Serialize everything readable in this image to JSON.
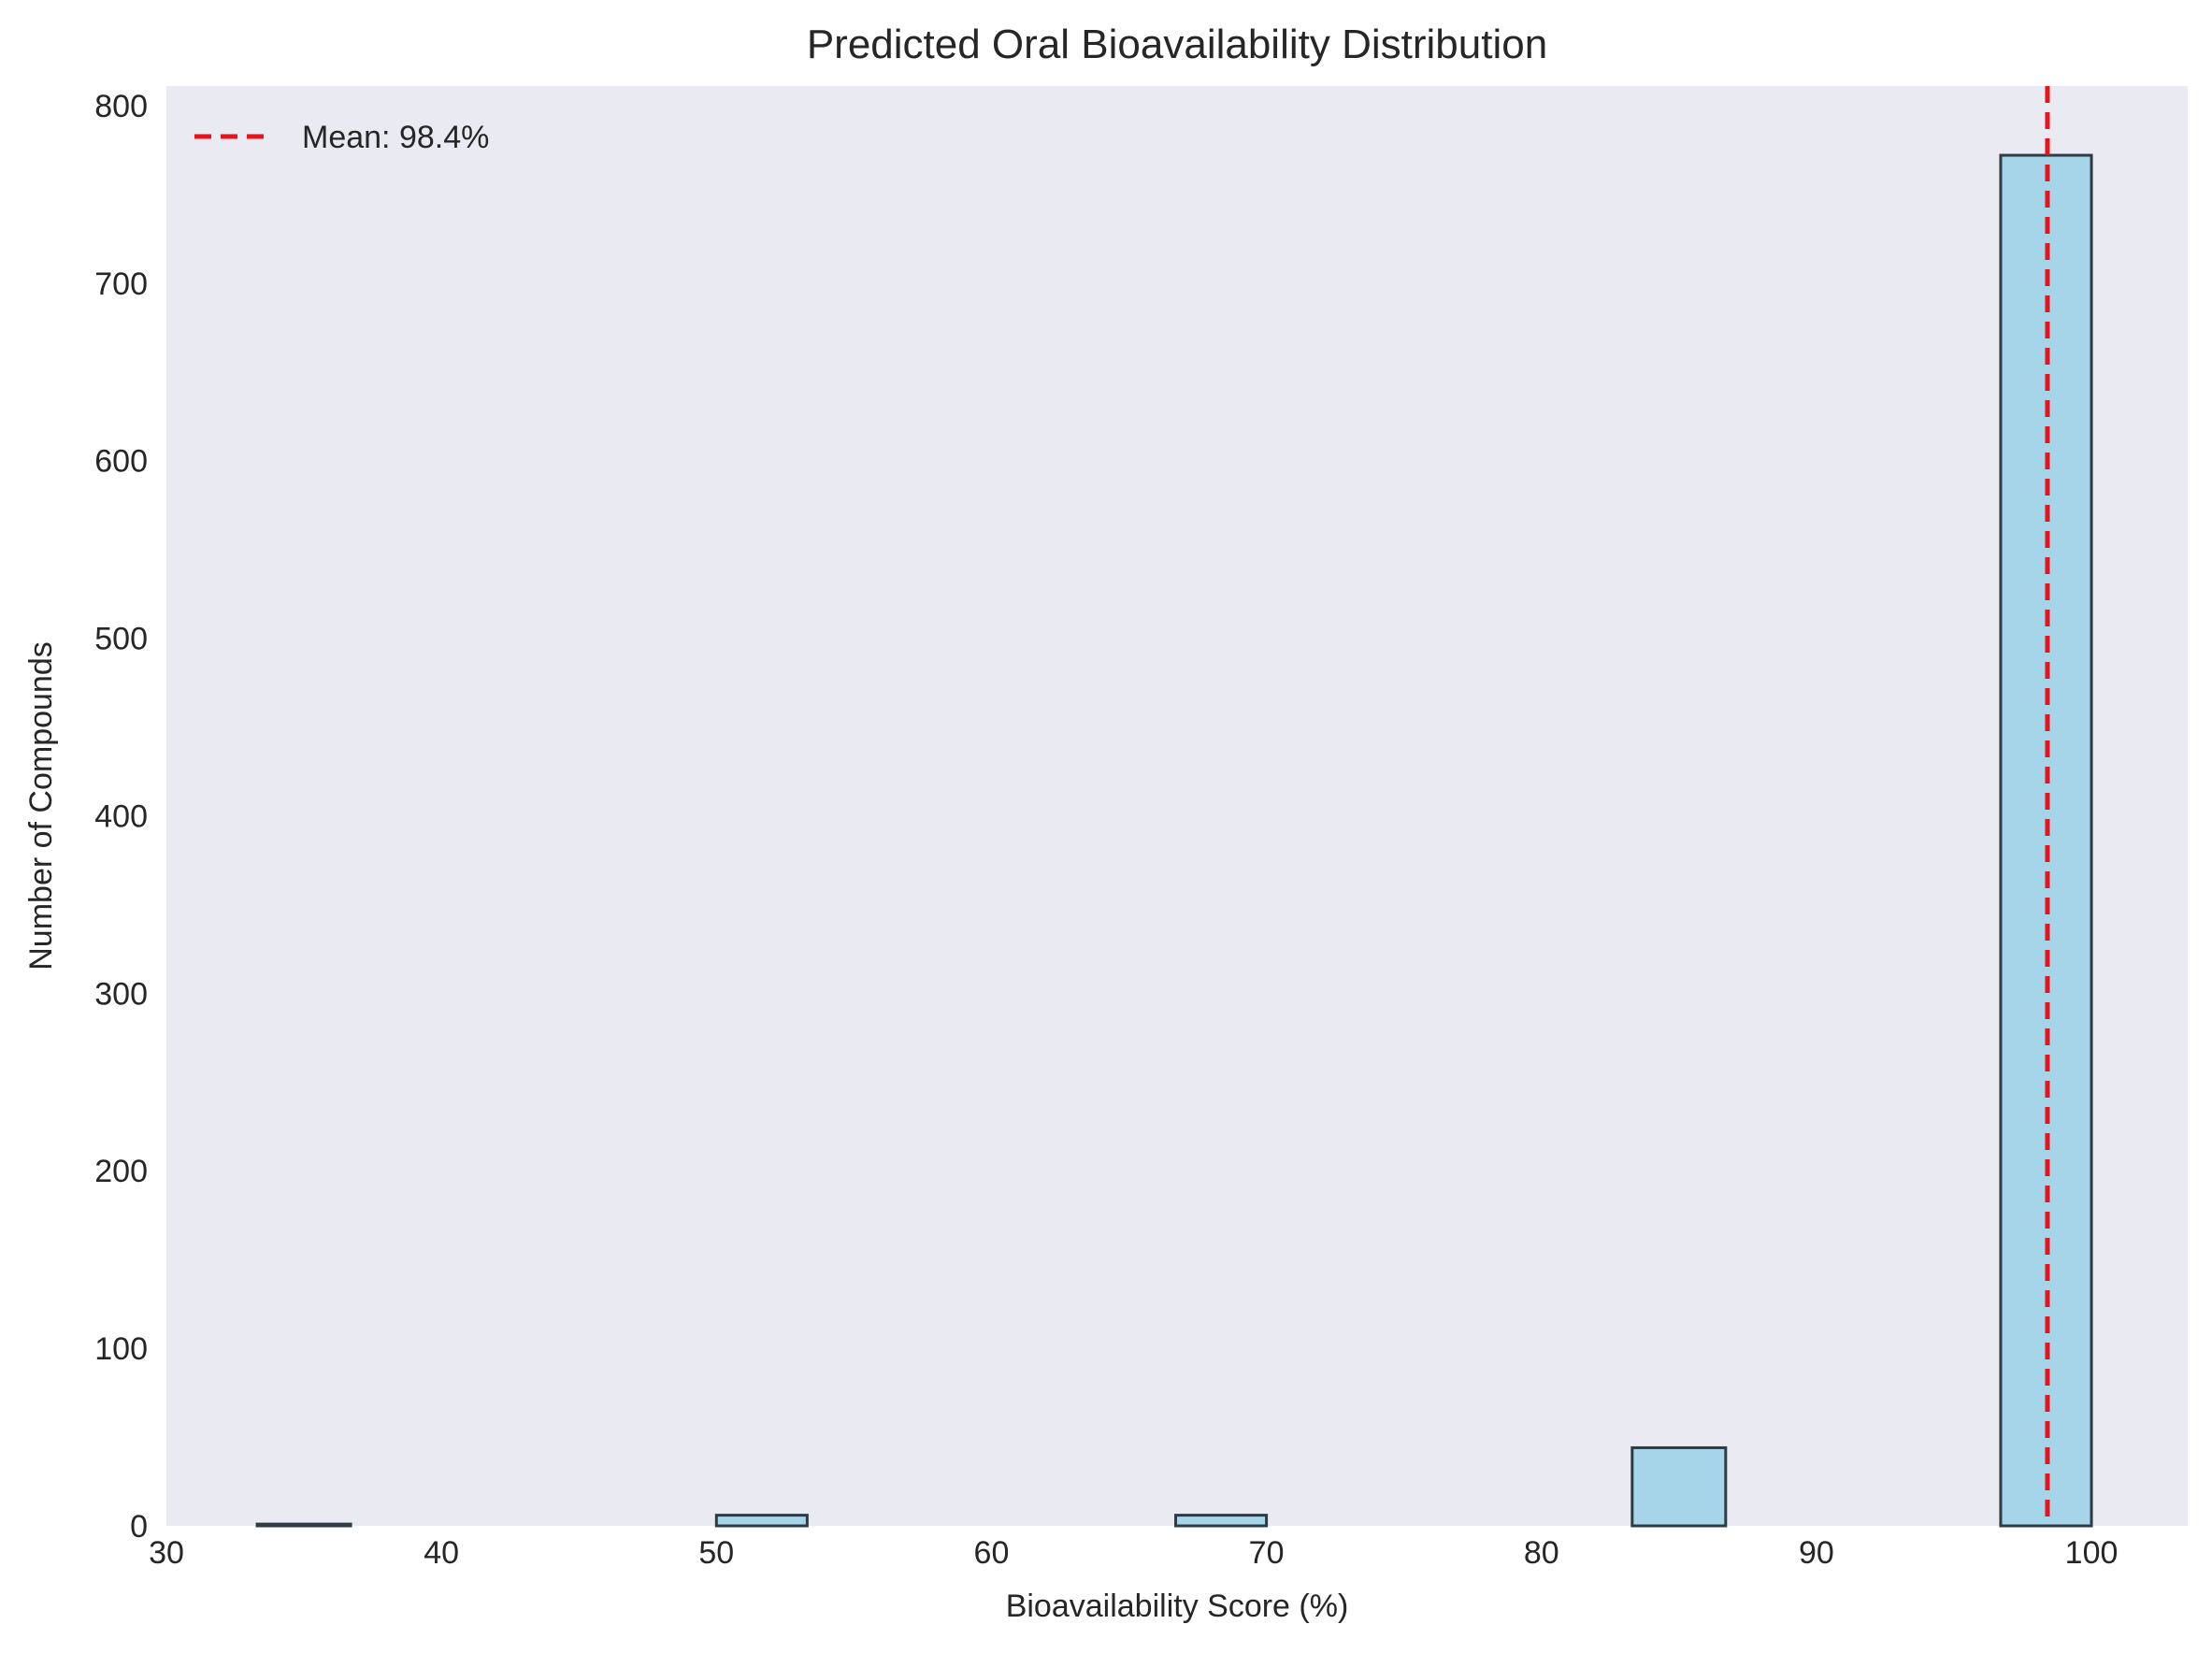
{
  "chart_data": {
    "type": "bar",
    "title": "Predicted Oral Bioavailability Distribution",
    "xlabel": "Bioavailability Score (%)",
    "ylabel": "Number of Compounds",
    "xlim": [
      30,
      103.5
    ],
    "ylim": [
      0,
      811
    ],
    "xticks": [
      30,
      40,
      50,
      60,
      70,
      80,
      90,
      100
    ],
    "yticks": [
      0,
      100,
      200,
      300,
      400,
      500,
      600,
      700,
      800
    ],
    "bins": [
      {
        "x0": 33.3,
        "x1": 36.7,
        "count": 1
      },
      {
        "x0": 50.0,
        "x1": 53.3,
        "count": 6
      },
      {
        "x0": 66.7,
        "x1": 70.0,
        "count": 6
      },
      {
        "x0": 83.3,
        "x1": 86.7,
        "count": 44
      },
      {
        "x0": 96.7,
        "x1": 100.0,
        "count": 772
      }
    ],
    "mean": {
      "value": 98.4,
      "label": "Mean: 98.4%"
    },
    "legend_position": "top-left",
    "grid": false,
    "colors": {
      "plot_background": "#eaeaf2",
      "bar_fill": "#a6d5ea",
      "bar_edge": "#2f3b44",
      "mean_line": "#e8141c"
    }
  }
}
